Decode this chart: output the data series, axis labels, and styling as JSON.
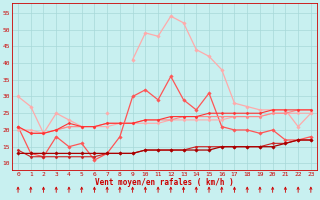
{
  "title": "",
  "xlabel": "Vent moyen/en rafales ( km/h )",
  "background_color": "#c8f0f0",
  "grid_color": "#a8d8d8",
  "x": [
    0,
    1,
    2,
    3,
    4,
    5,
    6,
    7,
    8,
    9,
    10,
    11,
    12,
    13,
    14,
    15,
    16,
    17,
    18,
    19,
    20,
    21,
    22,
    23
  ],
  "ylim": [
    8,
    58
  ],
  "yticks": [
    10,
    15,
    20,
    25,
    30,
    35,
    40,
    45,
    50,
    55
  ],
  "series": [
    {
      "color": "#ffaaaa",
      "lw": 0.9,
      "marker": "D",
      "ms": 1.8,
      "y": [
        30,
        27,
        19,
        25,
        23,
        21,
        null,
        25,
        null,
        41,
        49,
        48,
        54,
        52,
        44,
        42,
        38,
        28,
        27,
        26,
        26,
        26,
        21,
        25
      ]
    },
    {
      "color": "#ff5555",
      "lw": 0.9,
      "marker": "D",
      "ms": 1.8,
      "y": [
        21,
        13,
        12,
        18,
        15,
        16,
        11,
        13,
        18,
        30,
        32,
        29,
        36,
        29,
        26,
        31,
        21,
        20,
        20,
        19,
        20,
        17,
        17,
        18
      ]
    },
    {
      "color": "#ffaaaa",
      "lw": 0.8,
      "marker": "D",
      "ms": 1.5,
      "y": [
        20,
        20,
        19,
        20,
        21,
        21,
        21,
        21,
        22,
        22,
        22,
        22,
        23,
        23,
        23,
        23,
        23,
        24,
        24,
        24,
        25,
        25,
        25,
        25
      ]
    },
    {
      "color": "#cc2222",
      "lw": 0.8,
      "marker": "D",
      "ms": 1.5,
      "y": [
        14,
        12,
        12,
        12,
        12,
        12,
        12,
        13,
        13,
        13,
        14,
        14,
        14,
        14,
        15,
        15,
        15,
        15,
        15,
        15,
        16,
        16,
        17,
        17
      ]
    },
    {
      "color": "#ff8888",
      "lw": 0.8,
      "marker": "D",
      "ms": 1.5,
      "y": [
        21,
        19,
        19,
        20,
        21,
        21,
        21,
        22,
        22,
        22,
        23,
        23,
        23,
        24,
        24,
        24,
        24,
        24,
        24,
        24,
        25,
        25,
        26,
        26
      ]
    },
    {
      "color": "#aa0000",
      "lw": 0.9,
      "marker": "D",
      "ms": 1.8,
      "y": [
        13,
        13,
        13,
        13,
        13,
        13,
        13,
        13,
        13,
        13,
        14,
        14,
        14,
        14,
        14,
        14,
        15,
        15,
        15,
        15,
        15,
        16,
        17,
        17
      ]
    },
    {
      "color": "#ff3333",
      "lw": 0.8,
      "marker": "D",
      "ms": 1.5,
      "y": [
        21,
        19,
        19,
        20,
        22,
        21,
        21,
        22,
        22,
        22,
        23,
        23,
        24,
        24,
        24,
        25,
        25,
        25,
        25,
        25,
        26,
        26,
        26,
        26
      ]
    }
  ]
}
